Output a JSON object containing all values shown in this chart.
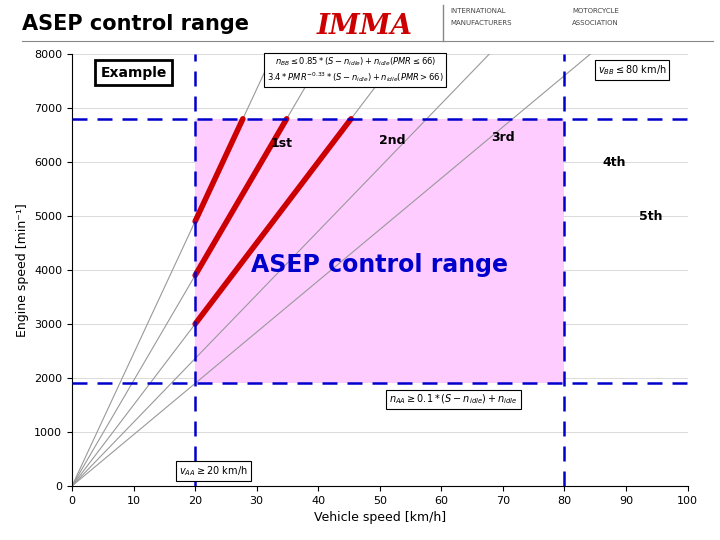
{
  "title": "ASEP control range",
  "xlabel": "Vehicle speed [km/h]",
  "ylabel": "Engine speed [min⁻¹]",
  "xlim": [
    0,
    100
  ],
  "ylim": [
    0,
    8000
  ],
  "xticks": [
    0,
    10,
    20,
    30,
    40,
    50,
    60,
    70,
    80,
    90,
    100
  ],
  "yticks": [
    0,
    1000,
    2000,
    3000,
    4000,
    5000,
    6000,
    7000,
    8000
  ],
  "v_AA": 20,
  "v_BB": 80,
  "n_AA": 1900,
  "n_BB": 6800,
  "bg_color": "#ffffff",
  "control_range_color": "#ffccff",
  "dashed_color": "#0000cc",
  "gear_lines_color": "#cc0000",
  "thin_lines_color": "#999999",
  "center_label_color": "#0000cc",
  "imma_color": "#cc0000",
  "gear_slopes": [
    245,
    195,
    150,
    118,
    95
  ],
  "red_gear_indices": [
    0,
    1,
    2
  ],
  "label_positions": [
    [
      34,
      6350,
      "1st"
    ],
    [
      52,
      6400,
      "2nd"
    ],
    [
      70,
      6450,
      "3rd"
    ],
    [
      88,
      6000,
      "4th"
    ],
    [
      94,
      5000,
      "5th"
    ]
  ]
}
